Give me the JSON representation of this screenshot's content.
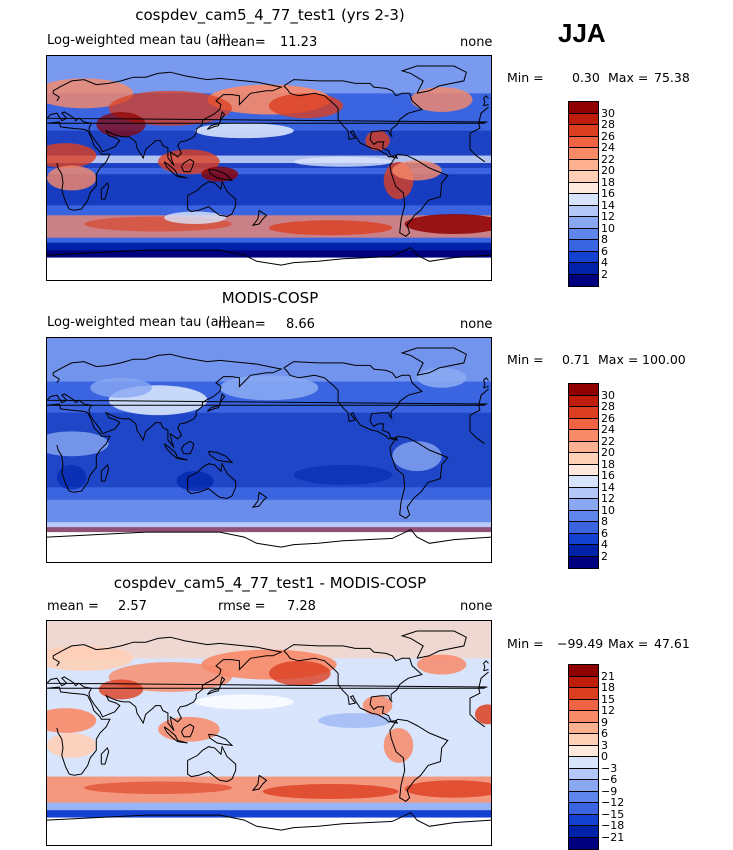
{
  "season": "JJA",
  "colors": {
    "abs_scale": [
      "#00007f",
      "#0022a8",
      "#1442d0",
      "#3a64e0",
      "#5f86ea",
      "#8aa8f2",
      "#b3c8f8",
      "#d8e4fc",
      "#ffe9de",
      "#ffcfb6",
      "#fdb08f",
      "#f98a68",
      "#f06443",
      "#dc3f20",
      "#bd1d0a",
      "#8f0000"
    ],
    "diff_scale": [
      "#00007f",
      "#0022a8",
      "#1442d0",
      "#3a64e0",
      "#5f86ea",
      "#8aa8f2",
      "#b3c8f8",
      "#d8e4fc",
      "#ffe9de",
      "#ffcfb6",
      "#fdb08f",
      "#f98a68",
      "#f06443",
      "#dc3f20",
      "#bd1d0a",
      "#8f0000"
    ]
  },
  "chart_data": [
    {
      "type": "heatmap",
      "title": "cospdev_cam5_4_77_test1 (yrs 2-3)",
      "subtitle": "Log-weighted mean tau (all)",
      "mean_label": "mean=",
      "mean": "11.23",
      "right_label": "none",
      "min_label": "Min =",
      "min": "0.30",
      "max_label": "Max =",
      "max": "75.38",
      "colorbar_ticks": [
        "30",
        "28",
        "26",
        "24",
        "22",
        "20",
        "18",
        "16",
        "14",
        "12",
        "10",
        "8",
        "6",
        "4",
        "2"
      ]
    },
    {
      "type": "heatmap",
      "title": "MODIS-COSP",
      "subtitle": "Log-weighted mean tau (all)",
      "mean_label": "mean=",
      "mean": "8.66",
      "right_label": "none",
      "min_label": "Min =",
      "min": "0.71",
      "max_label": "Max =",
      "max": "100.00",
      "colorbar_ticks": [
        "30",
        "28",
        "26",
        "24",
        "22",
        "20",
        "18",
        "16",
        "14",
        "12",
        "10",
        "8",
        "6",
        "4",
        "2"
      ]
    },
    {
      "type": "heatmap",
      "title": "cospdev_cam5_4_77_test1 - MODIS-COSP",
      "mean_label": "mean =",
      "mean": "2.57",
      "rmse_label": "rmse =",
      "rmse": "7.28",
      "right_label": "none",
      "min_label": "Min =",
      "min": "−99.49",
      "max_label": "Max =",
      "max": "47.61",
      "colorbar_ticks": [
        "21",
        "18",
        "15",
        "12",
        "9",
        "6",
        "3",
        "0",
        "−3",
        "−6",
        "−9",
        "−12",
        "−15",
        "−18",
        "−21"
      ]
    }
  ]
}
